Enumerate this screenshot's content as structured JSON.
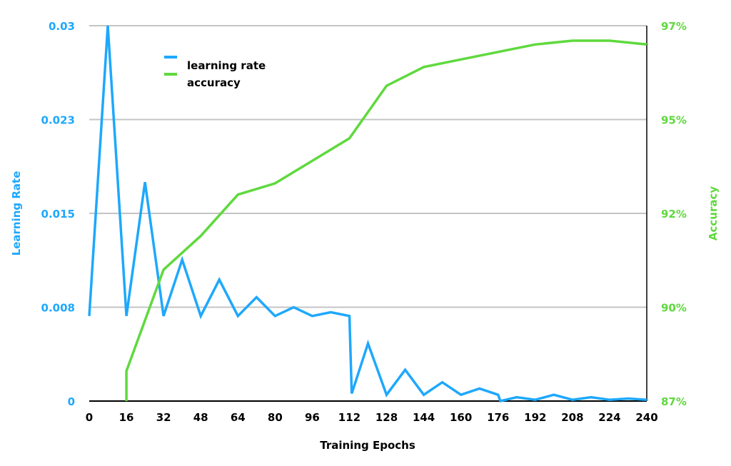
{
  "chart_data": {
    "type": "line",
    "title": "",
    "xlabel": "Training Epochs",
    "ylabel_left": "Learning Rate",
    "ylabel_right": "Accuracy",
    "xlim": [
      0,
      240
    ],
    "ylim_left": [
      0,
      0.03
    ],
    "ylim_right": [
      87,
      97
    ],
    "x_ticks": [
      "0",
      "16",
      "32",
      "48",
      "64",
      "80",
      "96",
      "112",
      "128",
      "144",
      "160",
      "176",
      "192",
      "208",
      "224",
      "240"
    ],
    "left_ticks": [
      "0",
      "0.008",
      "0.015",
      "0.023",
      "0.03"
    ],
    "right_ticks": [
      "87%",
      "90%",
      "92%",
      "95%",
      "97%"
    ],
    "grid": true,
    "legend": {
      "placement": "top-left",
      "entries": [
        "learning rate",
        "accuracy"
      ]
    },
    "colors": {
      "learning_rate": "#1EA8FC",
      "accuracy": "#5FD93E",
      "left_axis": "#1EA8FC",
      "right_axis": "#5FD93E"
    },
    "series": [
      {
        "name": "learning rate",
        "axis": "left",
        "x": [
          0,
          8,
          16,
          24,
          32,
          40,
          48,
          56,
          64,
          72,
          80,
          88,
          96,
          104,
          112,
          113,
          120,
          128,
          136,
          144,
          152,
          160,
          168,
          176,
          177,
          184,
          192,
          200,
          208,
          216,
          224,
          232,
          240
        ],
        "values": [
          0.0068,
          0.03,
          0.0068,
          0.0175,
          0.0068,
          0.0113,
          0.0068,
          0.0097,
          0.0068,
          0.0083,
          0.0068,
          0.0075,
          0.0068,
          0.0071,
          0.0068,
          0.0006,
          0.0046,
          0.0005,
          0.0025,
          0.0005,
          0.0015,
          0.0005,
          0.001,
          0.0005,
          0.0,
          0.0003,
          0.0001,
          0.0005,
          0.0001,
          0.0003,
          0.0001,
          0.0002,
          0.0001
        ]
      },
      {
        "name": "accuracy",
        "axis": "right",
        "x": [
          16,
          16,
          32,
          48,
          64,
          80,
          96,
          112,
          128,
          144,
          160,
          176,
          192,
          208,
          224,
          240
        ],
        "values": [
          87.0,
          87.8,
          90.5,
          91.4,
          92.5,
          92.8,
          93.4,
          94.0,
          95.4,
          95.9,
          96.1,
          96.3,
          96.5,
          96.6,
          96.6,
          96.5
        ]
      }
    ]
  }
}
